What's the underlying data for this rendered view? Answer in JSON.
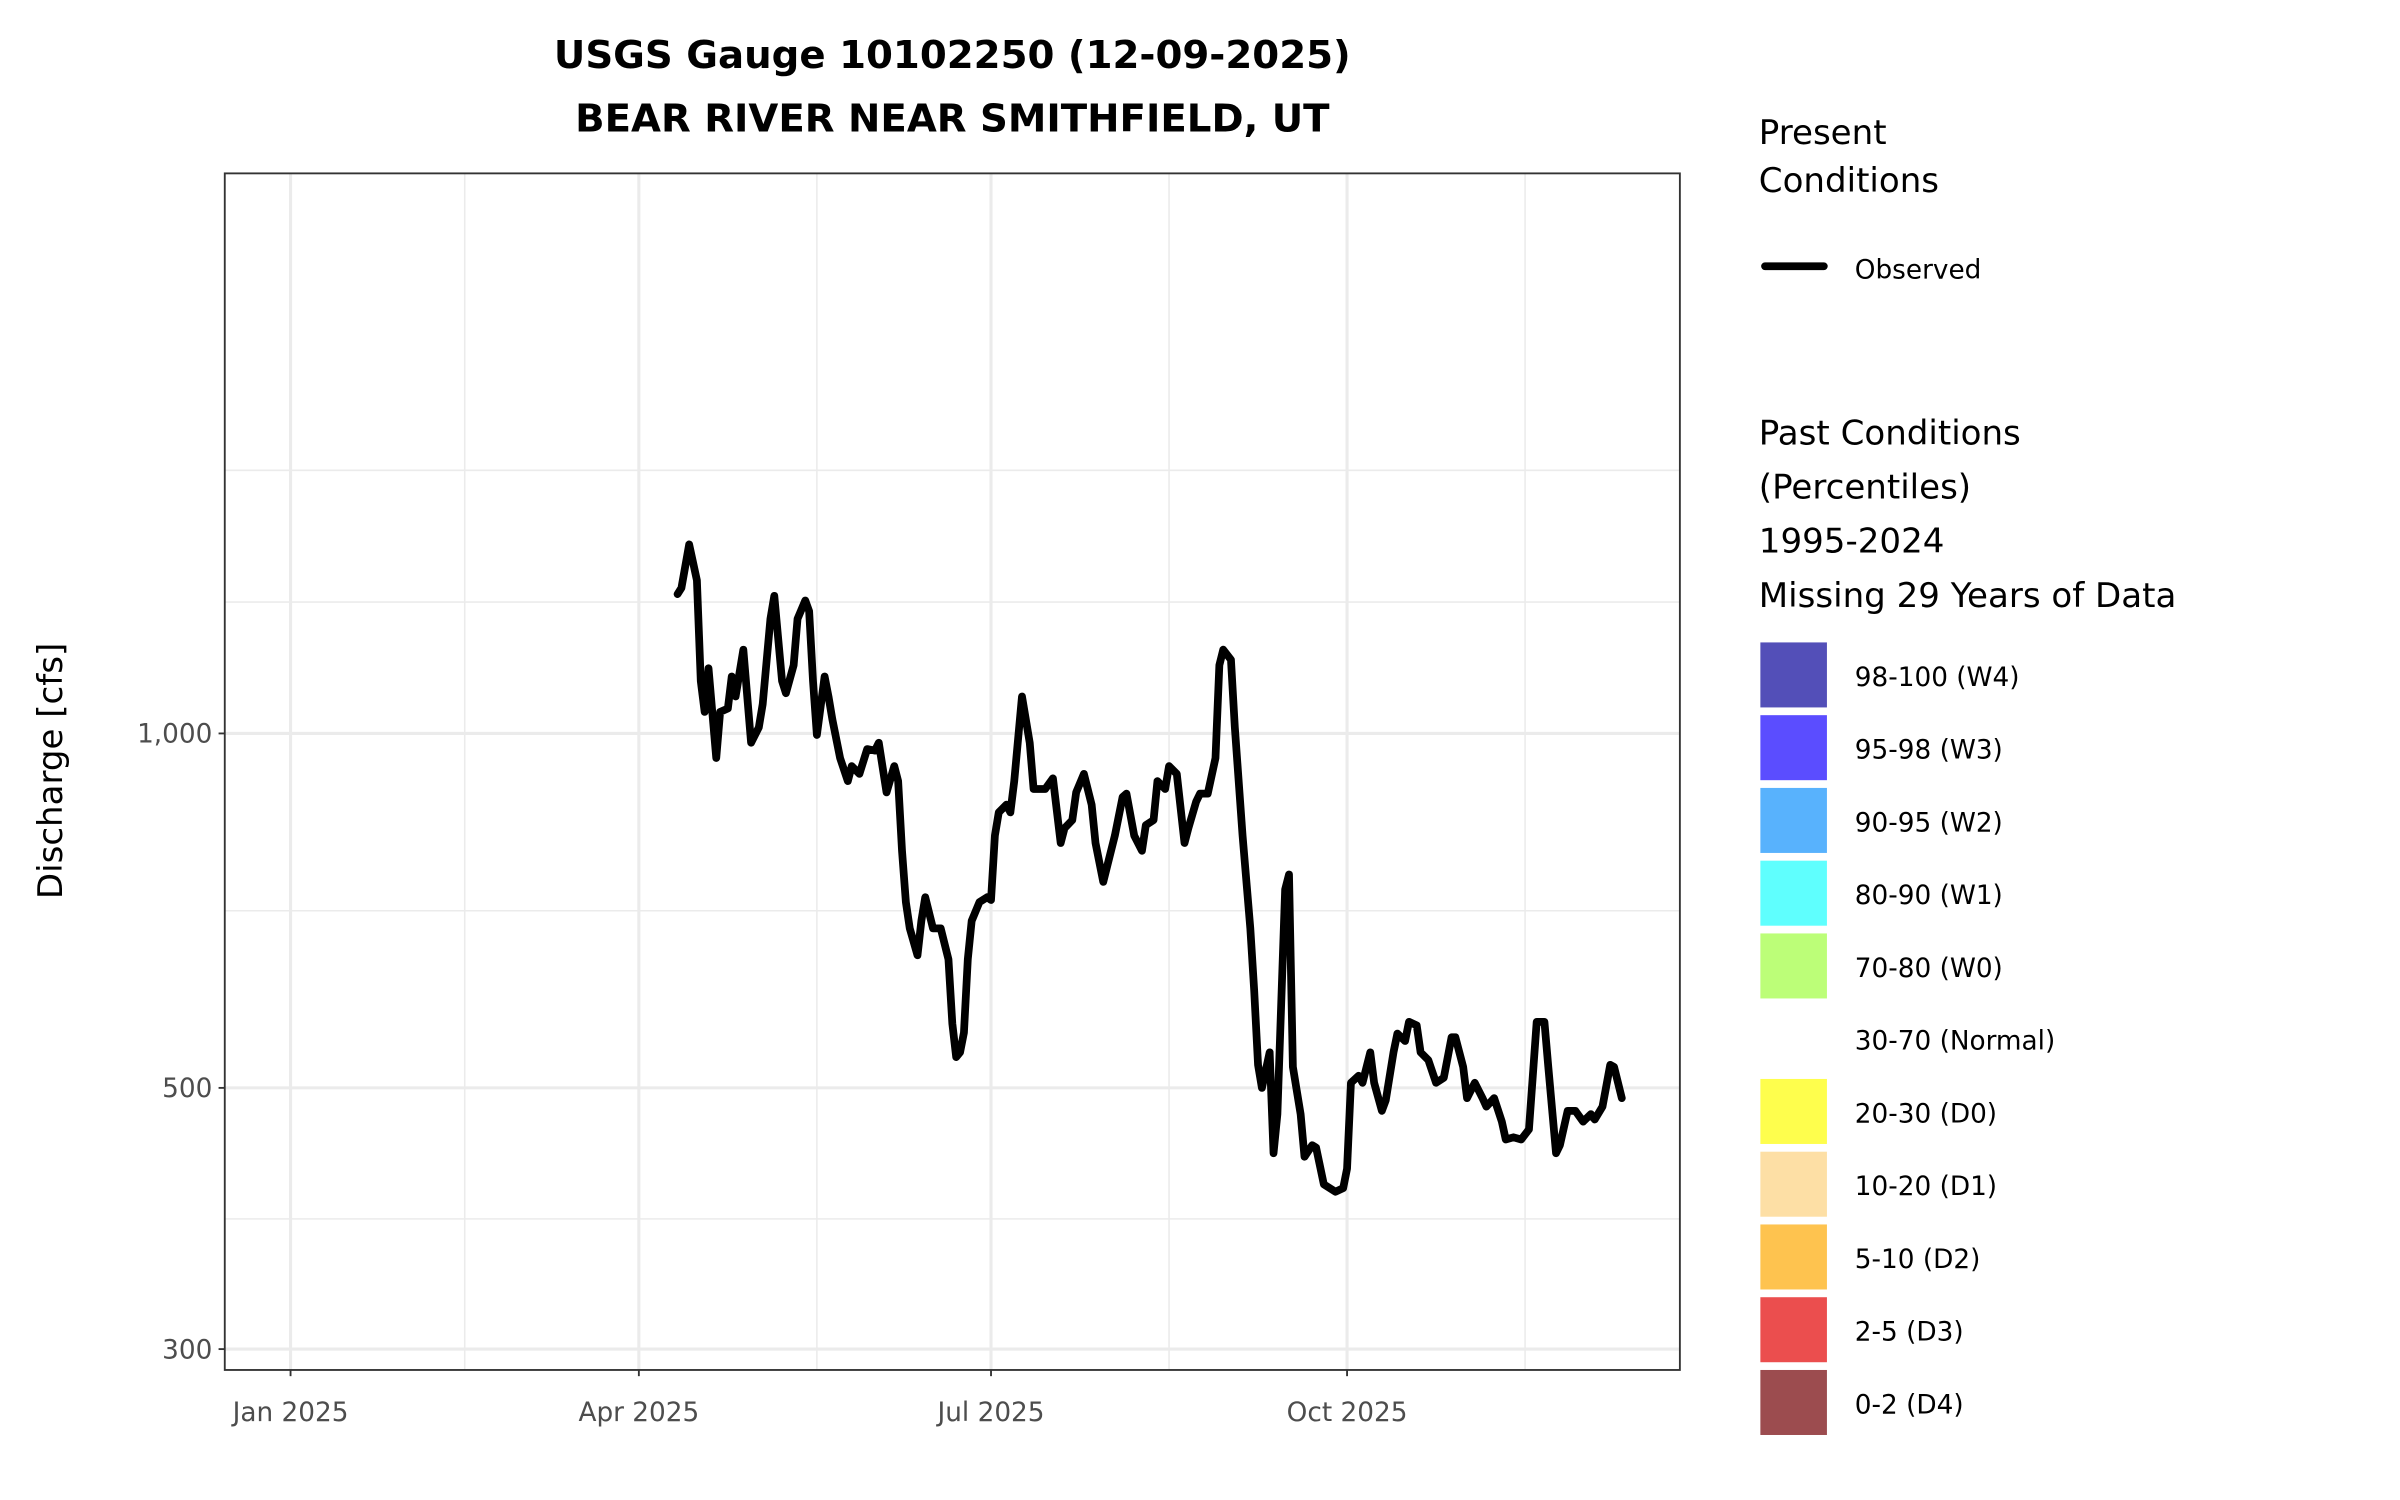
{
  "chart_data": {
    "type": "line",
    "title": "USGS Gauge 10102250 (12-09-2025)",
    "subtitle": "BEAR RIVER NEAR SMITHFIELD, UT",
    "xlabel": "",
    "ylabel": "Discharge [cfs]",
    "y_scale": "log10",
    "ylim": [
      288,
      2990
    ],
    "y_ticks": [
      300,
      500,
      1000
    ],
    "y_tick_labels": [
      "300",
      "500",
      "1,000"
    ],
    "y_minor_grid": [
      387,
      707,
      1293,
      1673
    ],
    "x_unit": "days since 2025-01-01",
    "xlim": [
      -17,
      359
    ],
    "x_ticks": [
      0,
      90,
      181,
      273
    ],
    "x_tick_labels": [
      "Jan 2025",
      "Apr 2025",
      "Jul 2025",
      "Oct 2025"
    ],
    "x_minor_grid": [
      45,
      136,
      227,
      319
    ],
    "grid": true,
    "legend_position": "right",
    "series": [
      {
        "name": "Observed",
        "color": "#000000",
        "points": [
          [
            100,
            1313
          ],
          [
            101,
            1329
          ],
          [
            103,
            1447
          ],
          [
            105,
            1349
          ],
          [
            106,
            1108
          ],
          [
            107,
            1043
          ],
          [
            108,
            1136
          ],
          [
            110,
            953
          ],
          [
            111,
            1043
          ],
          [
            113,
            1050
          ],
          [
            114,
            1118
          ],
          [
            115,
            1075
          ],
          [
            117,
            1178
          ],
          [
            119,
            982
          ],
          [
            121,
            1012
          ],
          [
            122,
            1059
          ],
          [
            124,
            1251
          ],
          [
            125,
            1309
          ],
          [
            127,
            1108
          ],
          [
            128,
            1082
          ],
          [
            130,
            1143
          ],
          [
            131,
            1251
          ],
          [
            133,
            1297
          ],
          [
            134,
            1270
          ],
          [
            135,
            1108
          ],
          [
            136,
            997
          ],
          [
            138,
            1118
          ],
          [
            139,
            1075
          ],
          [
            140,
            1028
          ],
          [
            142,
            953
          ],
          [
            144,
            911
          ],
          [
            145,
            938
          ],
          [
            147,
            924
          ],
          [
            149,
            970
          ],
          [
            151,
            967
          ],
          [
            152,
            982
          ],
          [
            154,
            891
          ],
          [
            156,
            938
          ],
          [
            157,
            911
          ],
          [
            158,
            795
          ],
          [
            159,
            719
          ],
          [
            160,
            683
          ],
          [
            162,
            648
          ],
          [
            163,
            693
          ],
          [
            164,
            726
          ],
          [
            166,
            683
          ],
          [
            168,
            683
          ],
          [
            170,
            643
          ],
          [
            171,
            567
          ],
          [
            172,
            531
          ],
          [
            173,
            536
          ],
          [
            174,
            557
          ],
          [
            175,
            643
          ],
          [
            176,
            693
          ],
          [
            178,
            719
          ],
          [
            180,
            726
          ],
          [
            181,
            722
          ],
          [
            182,
            819
          ],
          [
            183,
            857
          ],
          [
            185,
            870
          ],
          [
            186,
            857
          ],
          [
            187,
            911
          ],
          [
            189,
            1075
          ],
          [
            191,
            982
          ],
          [
            192,
            897
          ],
          [
            193,
            897
          ],
          [
            195,
            897
          ],
          [
            197,
            916
          ],
          [
            199,
            807
          ],
          [
            200,
            831
          ],
          [
            202,
            844
          ],
          [
            203,
            891
          ],
          [
            205,
            924
          ],
          [
            207,
            870
          ],
          [
            208,
            807
          ],
          [
            210,
            748
          ],
          [
            211,
            771
          ],
          [
            213,
            819
          ],
          [
            215,
            883
          ],
          [
            216,
            889
          ],
          [
            218,
            819
          ],
          [
            220,
            795
          ],
          [
            221,
            836
          ],
          [
            223,
            844
          ],
          [
            224,
            911
          ],
          [
            226,
            897
          ],
          [
            227,
            938
          ],
          [
            229,
            924
          ],
          [
            231,
            807
          ],
          [
            232,
            831
          ],
          [
            234,
            875
          ],
          [
            235,
            889
          ],
          [
            237,
            889
          ],
          [
            239,
            953
          ],
          [
            240,
            1143
          ],
          [
            241,
            1178
          ],
          [
            243,
            1155
          ],
          [
            244,
            1012
          ],
          [
            246,
            819
          ],
          [
            248,
            683
          ],
          [
            249,
            605
          ],
          [
            250,
            523
          ],
          [
            251,
            500
          ],
          [
            253,
            536
          ],
          [
            254,
            440
          ],
          [
            255,
            475
          ],
          [
            257,
            737
          ],
          [
            258,
            759
          ],
          [
            259,
            521
          ],
          [
            261,
            475
          ],
          [
            262,
            437
          ],
          [
            264,
            447
          ],
          [
            265,
            445
          ],
          [
            267,
            414
          ],
          [
            270,
            408
          ],
          [
            272,
            411
          ],
          [
            273,
            427
          ],
          [
            274,
            505
          ],
          [
            276,
            512
          ],
          [
            277,
            505
          ],
          [
            279,
            536
          ],
          [
            280,
            505
          ],
          [
            282,
            478
          ],
          [
            283,
            488
          ],
          [
            285,
            536
          ],
          [
            286,
            556
          ],
          [
            288,
            548
          ],
          [
            289,
            569
          ],
          [
            291,
            565
          ],
          [
            292,
            536
          ],
          [
            294,
            528
          ],
          [
            296,
            505
          ],
          [
            298,
            510
          ],
          [
            300,
            552
          ],
          [
            301,
            552
          ],
          [
            303,
            521
          ],
          [
            304,
            490
          ],
          [
            306,
            505
          ],
          [
            308,
            490
          ],
          [
            309,
            482
          ],
          [
            311,
            490
          ],
          [
            313,
            468
          ],
          [
            314,
            452
          ],
          [
            316,
            454
          ],
          [
            318,
            452
          ],
          [
            320,
            461
          ],
          [
            321,
            512
          ],
          [
            322,
            569
          ],
          [
            324,
            569
          ],
          [
            325,
            521
          ],
          [
            327,
            440
          ],
          [
            328,
            447
          ],
          [
            330,
            478
          ],
          [
            332,
            478
          ],
          [
            334,
            468
          ],
          [
            336,
            475
          ],
          [
            337,
            470
          ],
          [
            339,
            482
          ],
          [
            341,
            523
          ],
          [
            342,
            521
          ],
          [
            344,
            490
          ]
        ]
      }
    ],
    "legend": {
      "present_title": [
        "Present",
        "Conditions"
      ],
      "present_items": [
        {
          "label": "Observed",
          "color": "#000000"
        }
      ],
      "past_title": [
        "Past Conditions",
        "(Percentiles)",
        "1995-2024",
        "Missing 29 Years of Data"
      ],
      "past_items": [
        {
          "label": "98-100 (W4)",
          "color": "#534fb8"
        },
        {
          "label": "95-98 (W3)",
          "color": "#5b4dff"
        },
        {
          "label": "90-95 (W2)",
          "color": "#58b2fd"
        },
        {
          "label": "80-90 (W1)",
          "color": "#5ffffe"
        },
        {
          "label": "70-80 (W0)",
          "color": "#bcfe78"
        },
        {
          "label": "30-70 (Normal)",
          "color": "#ffffff"
        },
        {
          "label": "20-30 (D0)",
          "color": "#fefe4d"
        },
        {
          "label": "10-20 (D1)",
          "color": "#fddfa5"
        },
        {
          "label": "5-10 (D2)",
          "color": "#fec34f"
        },
        {
          "label": "2-5 (D3)",
          "color": "#eb4e4e"
        },
        {
          "label": "0-2 (D4)",
          "color": "#9c4c4f"
        }
      ]
    }
  }
}
